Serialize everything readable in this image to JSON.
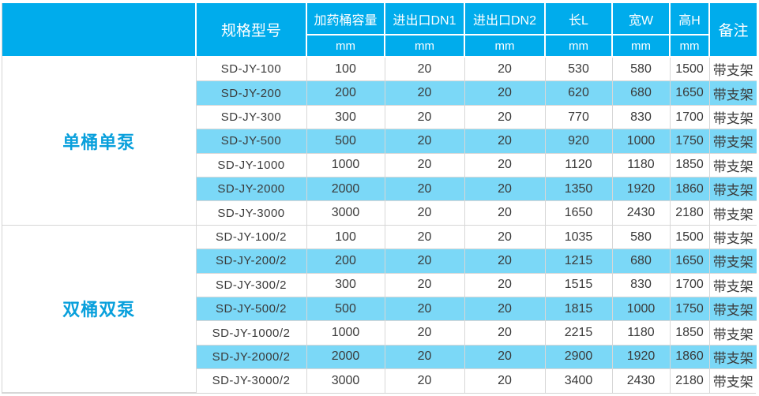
{
  "colors": {
    "header_bg": "#00ACEC",
    "stripe_bg": "#7BD8F7",
    "group_label_text": "#09A0DC",
    "body_text": "#3A3A3A",
    "header_text": "#FFFFFF",
    "grid_line": "#D7D7D7"
  },
  "table": {
    "columns": [
      {
        "key": "group",
        "label": "",
        "unit": ""
      },
      {
        "key": "model",
        "label": "规格型号",
        "unit": ""
      },
      {
        "key": "capacity",
        "label": "加药桶容量",
        "unit": "mm"
      },
      {
        "key": "dn1",
        "label": "进出口DN1",
        "unit": "mm"
      },
      {
        "key": "dn2",
        "label": "进出口DN2",
        "unit": "mm"
      },
      {
        "key": "length",
        "label": "长L",
        "unit": "mm"
      },
      {
        "key": "width",
        "label": "宽W",
        "unit": "mm"
      },
      {
        "key": "height",
        "label": "高H",
        "unit": "mm"
      },
      {
        "key": "remark",
        "label": "备注",
        "unit": ""
      }
    ],
    "groups": [
      {
        "label": "单桶单泵",
        "rows": [
          {
            "model": "SD-JY-100",
            "capacity": "100",
            "dn1": "20",
            "dn2": "20",
            "length": "530",
            "width": "580",
            "height": "1500",
            "remark": "带支架"
          },
          {
            "model": "SD-JY-200",
            "capacity": "200",
            "dn1": "20",
            "dn2": "20",
            "length": "620",
            "width": "680",
            "height": "1650",
            "remark": "带支架"
          },
          {
            "model": "SD-JY-300",
            "capacity": "300",
            "dn1": "20",
            "dn2": "20",
            "length": "770",
            "width": "830",
            "height": "1700",
            "remark": "带支架"
          },
          {
            "model": "SD-JY-500",
            "capacity": "500",
            "dn1": "20",
            "dn2": "20",
            "length": "920",
            "width": "1000",
            "height": "1750",
            "remark": "带支架"
          },
          {
            "model": "SD-JY-1000",
            "capacity": "1000",
            "dn1": "20",
            "dn2": "20",
            "length": "1120",
            "width": "1180",
            "height": "1850",
            "remark": "带支架"
          },
          {
            "model": "SD-JY-2000",
            "capacity": "2000",
            "dn1": "20",
            "dn2": "20",
            "length": "1350",
            "width": "1920",
            "height": "1860",
            "remark": "带支架"
          },
          {
            "model": "SD-JY-3000",
            "capacity": "3000",
            "dn1": "20",
            "dn2": "20",
            "length": "1650",
            "width": "2430",
            "height": "2180",
            "remark": "带支架"
          }
        ]
      },
      {
        "label": "双桶双泵",
        "rows": [
          {
            "model": "SD-JY-100/2",
            "capacity": "100",
            "dn1": "20",
            "dn2": "20",
            "length": "1035",
            "width": "580",
            "height": "1500",
            "remark": "带支架"
          },
          {
            "model": "SD-JY-200/2",
            "capacity": "200",
            "dn1": "20",
            "dn2": "20",
            "length": "1215",
            "width": "680",
            "height": "1650",
            "remark": "带支架"
          },
          {
            "model": "SD-JY-300/2",
            "capacity": "300",
            "dn1": "20",
            "dn2": "20",
            "length": "1515",
            "width": "830",
            "height": "1700",
            "remark": "带支架"
          },
          {
            "model": "SD-JY-500/2",
            "capacity": "500",
            "dn1": "20",
            "dn2": "20",
            "length": "1815",
            "width": "1000",
            "height": "1750",
            "remark": "带支架"
          },
          {
            "model": "SD-JY-1000/2",
            "capacity": "1000",
            "dn1": "20",
            "dn2": "20",
            "length": "2215",
            "width": "1180",
            "height": "1850",
            "remark": "带支架"
          },
          {
            "model": "SD-JY-2000/2",
            "capacity": "2000",
            "dn1": "20",
            "dn2": "20",
            "length": "2900",
            "width": "1920",
            "height": "1860",
            "remark": "带支架"
          },
          {
            "model": "SD-JY-3000/2",
            "capacity": "3000",
            "dn1": "20",
            "dn2": "20",
            "length": "3400",
            "width": "2430",
            "height": "2180",
            "remark": "带支架"
          }
        ]
      }
    ]
  }
}
